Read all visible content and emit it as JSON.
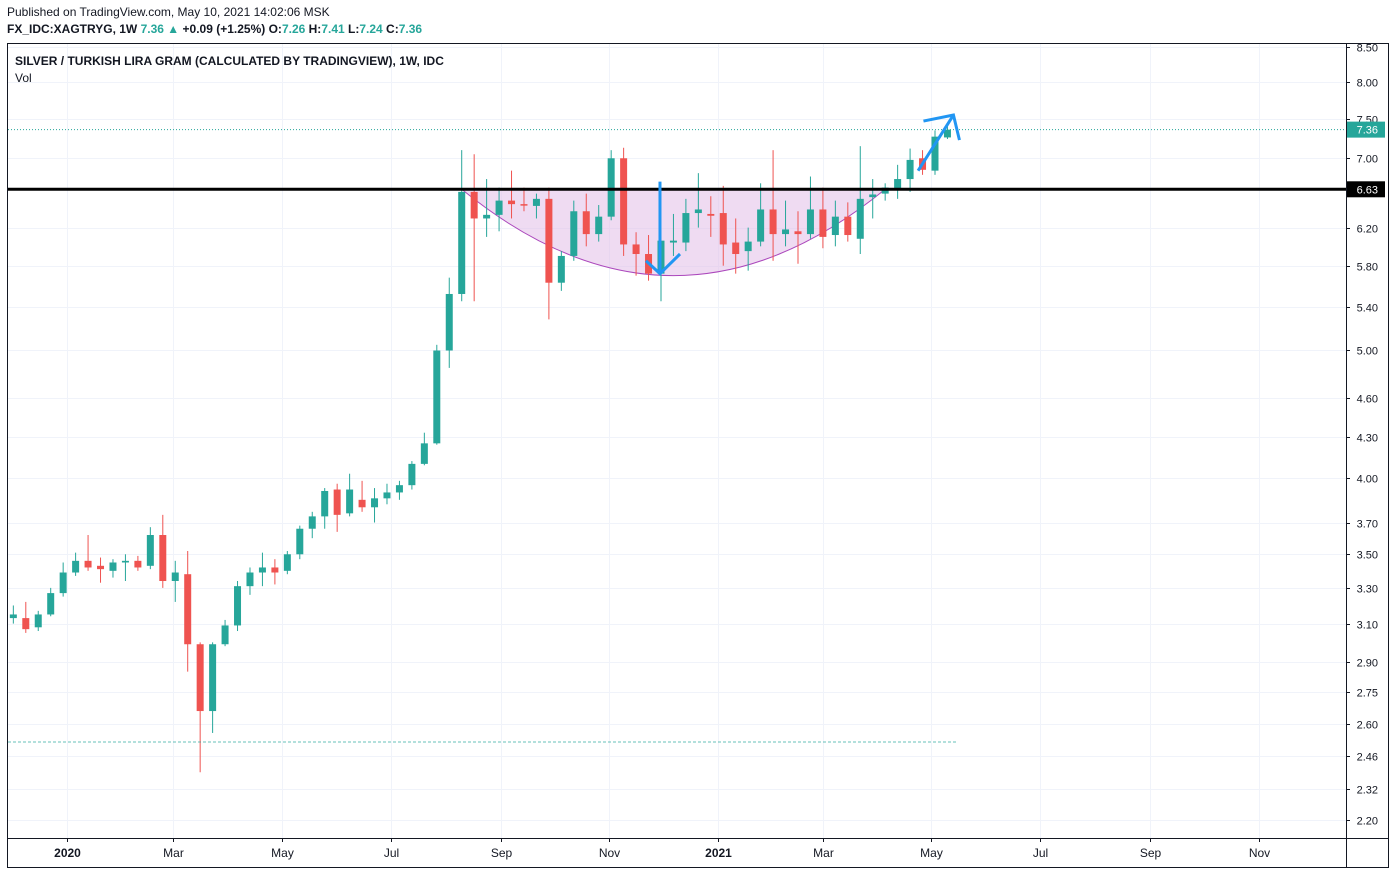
{
  "header": {
    "published": "Published on TradingView.com, May 10, 2021 14:02:06 MSK",
    "symbol": "FX_IDC:XAGTRYG, 1W",
    "last": "7.36",
    "change": "+0.09 (+1.25%)",
    "o_label": "O:",
    "o": "7.26",
    "h_label": "H:",
    "h": "7.41",
    "l_label": "L:",
    "l": "7.24",
    "c_label": "C:",
    "c": "7.36"
  },
  "chart_data": {
    "type": "candlestick",
    "title": "SILVER / TURKISH LIRA GRAM (CALCULATED BY TRADINGVIEW), 1W, IDC",
    "subtitle": "Vol",
    "y_scale": "log",
    "y_ticks": [
      8.5,
      8.0,
      7.5,
      7.0,
      6.2,
      5.8,
      5.4,
      5.0,
      4.6,
      4.3,
      4.0,
      3.7,
      3.5,
      3.3,
      3.1,
      2.9,
      2.75,
      2.6,
      2.46,
      2.32,
      2.2
    ],
    "y_tick_labels": [
      "8.50",
      "8.00",
      "7.50",
      "7.00",
      "6.20",
      "5.80",
      "5.40",
      "5.00",
      "4.60",
      "4.30",
      "4.00",
      "3.70",
      "3.50",
      "3.30",
      "3.10",
      "2.90",
      "2.75",
      "2.60",
      "2.46",
      "2.32",
      "2.20"
    ],
    "x_labels": [
      {
        "label": "2020",
        "date": "2020-01-01",
        "bold": true
      },
      {
        "label": "Mar",
        "date": "2020-03-01"
      },
      {
        "label": "May",
        "date": "2020-05-01"
      },
      {
        "label": "Jul",
        "date": "2020-07-01"
      },
      {
        "label": "Sep",
        "date": "2020-09-01"
      },
      {
        "label": "Nov",
        "date": "2020-11-01"
      },
      {
        "label": "2021",
        "date": "2021-01-01",
        "bold": true
      },
      {
        "label": "Mar",
        "date": "2021-03-01"
      },
      {
        "label": "May",
        "date": "2021-05-01"
      },
      {
        "label": "Jul",
        "date": "2021-07-01"
      },
      {
        "label": "Sep",
        "date": "2021-09-01"
      },
      {
        "label": "Nov",
        "date": "2021-11-01"
      }
    ],
    "x_range": [
      "2019-11-29",
      "2021-12-20"
    ],
    "y_range": [
      2.13,
      8.55
    ],
    "up_color": "#26a69a",
    "down_color": "#ef5350",
    "resistance": {
      "value": 6.63,
      "label": "6.63",
      "color": "#000000"
    },
    "last_price": {
      "value": 7.36,
      "label": "7.36",
      "color": "#26a69a"
    },
    "lows_line": {
      "value": 2.52
    },
    "cup_fill": "#e1bee7",
    "cup_stroke": "#ab47bc",
    "arrow_color": "#2196f3",
    "candles": [
      {
        "d": "2019-12-02",
        "o": 3.13,
        "h": 3.2,
        "l": 3.1,
        "c": 3.15
      },
      {
        "d": "2019-12-09",
        "o": 3.13,
        "h": 3.22,
        "l": 3.05,
        "c": 3.07
      },
      {
        "d": "2019-12-16",
        "o": 3.08,
        "h": 3.17,
        "l": 3.06,
        "c": 3.15
      },
      {
        "d": "2019-12-23",
        "o": 3.15,
        "h": 3.3,
        "l": 3.14,
        "c": 3.27
      },
      {
        "d": "2019-12-30",
        "o": 3.27,
        "h": 3.45,
        "l": 3.25,
        "c": 3.39
      },
      {
        "d": "2020-01-06",
        "o": 3.39,
        "h": 3.51,
        "l": 3.37,
        "c": 3.46
      },
      {
        "d": "2020-01-13",
        "o": 3.46,
        "h": 3.62,
        "l": 3.4,
        "c": 3.42
      },
      {
        "d": "2020-01-20",
        "o": 3.43,
        "h": 3.48,
        "l": 3.33,
        "c": 3.41
      },
      {
        "d": "2020-01-27",
        "o": 3.4,
        "h": 3.47,
        "l": 3.36,
        "c": 3.45
      },
      {
        "d": "2020-02-03",
        "o": 3.45,
        "h": 3.5,
        "l": 3.34,
        "c": 3.46
      },
      {
        "d": "2020-02-10",
        "o": 3.46,
        "h": 3.49,
        "l": 3.4,
        "c": 3.42
      },
      {
        "d": "2020-02-17",
        "o": 3.43,
        "h": 3.67,
        "l": 3.41,
        "c": 3.62
      },
      {
        "d": "2020-02-24",
        "o": 3.62,
        "h": 3.75,
        "l": 3.3,
        "c": 3.34
      },
      {
        "d": "2020-03-02",
        "o": 3.34,
        "h": 3.46,
        "l": 3.22,
        "c": 3.39
      },
      {
        "d": "2020-03-09",
        "o": 3.38,
        "h": 3.52,
        "l": 2.85,
        "c": 2.99
      },
      {
        "d": "2020-03-16",
        "o": 2.99,
        "h": 3.0,
        "l": 2.39,
        "c": 2.66
      },
      {
        "d": "2020-03-23",
        "o": 2.66,
        "h": 3.0,
        "l": 2.56,
        "c": 2.99
      },
      {
        "d": "2020-03-30",
        "o": 2.99,
        "h": 3.12,
        "l": 2.98,
        "c": 3.09
      },
      {
        "d": "2020-04-06",
        "o": 3.09,
        "h": 3.34,
        "l": 3.06,
        "c": 3.31
      },
      {
        "d": "2020-04-13",
        "o": 3.31,
        "h": 3.42,
        "l": 3.26,
        "c": 3.39
      },
      {
        "d": "2020-04-20",
        "o": 3.39,
        "h": 3.51,
        "l": 3.31,
        "c": 3.42
      },
      {
        "d": "2020-04-27",
        "o": 3.42,
        "h": 3.47,
        "l": 3.32,
        "c": 3.39
      },
      {
        "d": "2020-05-04",
        "o": 3.4,
        "h": 3.52,
        "l": 3.38,
        "c": 3.5
      },
      {
        "d": "2020-05-11",
        "o": 3.5,
        "h": 3.68,
        "l": 3.47,
        "c": 3.66
      },
      {
        "d": "2020-05-18",
        "o": 3.66,
        "h": 3.77,
        "l": 3.6,
        "c": 3.74
      },
      {
        "d": "2020-05-25",
        "o": 3.74,
        "h": 3.93,
        "l": 3.66,
        "c": 3.91
      },
      {
        "d": "2020-06-01",
        "o": 3.92,
        "h": 3.96,
        "l": 3.64,
        "c": 3.75
      },
      {
        "d": "2020-06-08",
        "o": 3.76,
        "h": 4.03,
        "l": 3.74,
        "c": 3.92
      },
      {
        "d": "2020-06-15",
        "o": 3.85,
        "h": 3.98,
        "l": 3.77,
        "c": 3.8
      },
      {
        "d": "2020-06-22",
        "o": 3.8,
        "h": 3.93,
        "l": 3.7,
        "c": 3.86
      },
      {
        "d": "2020-06-29",
        "o": 3.86,
        "h": 3.96,
        "l": 3.82,
        "c": 3.9
      },
      {
        "d": "2020-07-06",
        "o": 3.9,
        "h": 3.98,
        "l": 3.85,
        "c": 3.95
      },
      {
        "d": "2020-07-13",
        "o": 3.95,
        "h": 4.12,
        "l": 3.92,
        "c": 4.1
      },
      {
        "d": "2020-07-20",
        "o": 4.1,
        "h": 4.33,
        "l": 4.09,
        "c": 4.25
      },
      {
        "d": "2020-07-27",
        "o": 4.25,
        "h": 5.05,
        "l": 4.24,
        "c": 5.0
      },
      {
        "d": "2020-08-03",
        "o": 5.0,
        "h": 5.68,
        "l": 4.85,
        "c": 5.52
      },
      {
        "d": "2020-08-10",
        "o": 5.52,
        "h": 7.1,
        "l": 5.45,
        "c": 6.6
      },
      {
        "d": "2020-08-17",
        "o": 6.6,
        "h": 7.05,
        "l": 5.45,
        "c": 6.3
      },
      {
        "d": "2020-08-24",
        "o": 6.3,
        "h": 6.75,
        "l": 6.1,
        "c": 6.34
      },
      {
        "d": "2020-08-31",
        "o": 6.34,
        "h": 6.65,
        "l": 6.16,
        "c": 6.5
      },
      {
        "d": "2020-09-07",
        "o": 6.5,
        "h": 6.85,
        "l": 6.3,
        "c": 6.46
      },
      {
        "d": "2020-09-14",
        "o": 6.46,
        "h": 6.65,
        "l": 6.38,
        "c": 6.45
      },
      {
        "d": "2020-09-21",
        "o": 6.44,
        "h": 6.58,
        "l": 6.3,
        "c": 6.52
      },
      {
        "d": "2020-09-28",
        "o": 6.52,
        "h": 6.65,
        "l": 5.28,
        "c": 5.63
      },
      {
        "d": "2020-10-05",
        "o": 5.63,
        "h": 5.95,
        "l": 5.55,
        "c": 5.9
      },
      {
        "d": "2020-10-12",
        "o": 5.9,
        "h": 6.5,
        "l": 5.85,
        "c": 6.38
      },
      {
        "d": "2020-10-19",
        "o": 6.38,
        "h": 6.58,
        "l": 6.0,
        "c": 6.13
      },
      {
        "d": "2020-10-26",
        "o": 6.13,
        "h": 6.45,
        "l": 6.05,
        "c": 6.32
      },
      {
        "d": "2020-11-02",
        "o": 6.32,
        "h": 7.1,
        "l": 6.28,
        "c": 7.0
      },
      {
        "d": "2020-11-09",
        "o": 7.0,
        "h": 7.13,
        "l": 5.9,
        "c": 6.02
      },
      {
        "d": "2020-11-16",
        "o": 6.02,
        "h": 6.15,
        "l": 5.7,
        "c": 5.92
      },
      {
        "d": "2020-11-23",
        "o": 5.92,
        "h": 6.12,
        "l": 5.65,
        "c": 5.72
      },
      {
        "d": "2020-11-30",
        "o": 5.72,
        "h": 6.18,
        "l": 5.45,
        "c": 6.06
      },
      {
        "d": "2020-12-07",
        "o": 6.04,
        "h": 6.35,
        "l": 5.9,
        "c": 6.06
      },
      {
        "d": "2020-12-14",
        "o": 6.04,
        "h": 6.52,
        "l": 5.95,
        "c": 6.36
      },
      {
        "d": "2020-12-21",
        "o": 6.36,
        "h": 6.82,
        "l": 6.2,
        "c": 6.4
      },
      {
        "d": "2020-12-28",
        "o": 6.35,
        "h": 6.55,
        "l": 6.1,
        "c": 6.33
      },
      {
        "d": "2021-01-04",
        "o": 6.36,
        "h": 6.67,
        "l": 5.8,
        "c": 6.02
      },
      {
        "d": "2021-01-11",
        "o": 6.04,
        "h": 6.3,
        "l": 5.72,
        "c": 5.92
      },
      {
        "d": "2021-01-18",
        "o": 5.95,
        "h": 6.2,
        "l": 5.75,
        "c": 6.05
      },
      {
        "d": "2021-01-25",
        "o": 6.05,
        "h": 6.7,
        "l": 6.0,
        "c": 6.4
      },
      {
        "d": "2021-02-01",
        "o": 6.4,
        "h": 7.1,
        "l": 5.85,
        "c": 6.13
      },
      {
        "d": "2021-02-08",
        "o": 6.13,
        "h": 6.5,
        "l": 6.0,
        "c": 6.18
      },
      {
        "d": "2021-02-15",
        "o": 6.16,
        "h": 6.38,
        "l": 5.82,
        "c": 6.13
      },
      {
        "d": "2021-02-22",
        "o": 6.13,
        "h": 6.78,
        "l": 6.08,
        "c": 6.4
      },
      {
        "d": "2021-03-01",
        "o": 6.4,
        "h": 6.65,
        "l": 5.98,
        "c": 6.1
      },
      {
        "d": "2021-03-08",
        "o": 6.12,
        "h": 6.5,
        "l": 6.0,
        "c": 6.32
      },
      {
        "d": "2021-03-15",
        "o": 6.32,
        "h": 6.48,
        "l": 6.05,
        "c": 6.12
      },
      {
        "d": "2021-03-22",
        "o": 6.08,
        "h": 7.15,
        "l": 5.92,
        "c": 6.52
      },
      {
        "d": "2021-03-29",
        "o": 6.54,
        "h": 6.75,
        "l": 6.3,
        "c": 6.57
      },
      {
        "d": "2021-04-05",
        "o": 6.58,
        "h": 6.7,
        "l": 6.5,
        "c": 6.65
      },
      {
        "d": "2021-04-12",
        "o": 6.62,
        "h": 6.92,
        "l": 6.52,
        "c": 6.75
      },
      {
        "d": "2021-04-19",
        "o": 6.75,
        "h": 7.12,
        "l": 6.6,
        "c": 6.98
      },
      {
        "d": "2021-04-26",
        "o": 7.0,
        "h": 7.1,
        "l": 6.8,
        "c": 6.86
      },
      {
        "d": "2021-05-03",
        "o": 6.85,
        "h": 7.35,
        "l": 6.8,
        "c": 7.27
      },
      {
        "d": "2021-05-10",
        "o": 7.26,
        "h": 7.41,
        "l": 7.24,
        "c": 7.36
      }
    ]
  }
}
